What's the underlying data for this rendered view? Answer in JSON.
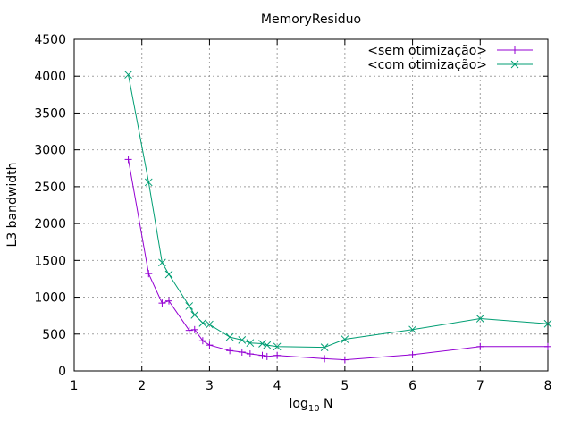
{
  "chart_data": {
    "type": "line",
    "title": "MemoryResiduo",
    "xlabel_main": "log",
    "xlabel_sub": "10",
    "xlabel_tail": " N",
    "ylabel": "L3 bandwidth",
    "xlim": [
      1,
      8
    ],
    "ylim": [
      0,
      4500
    ],
    "xticks": [
      1,
      2,
      3,
      4,
      5,
      6,
      7,
      8
    ],
    "yticks": [
      0,
      500,
      1000,
      1500,
      2000,
      2500,
      3000,
      3500,
      4000,
      4500
    ],
    "grid": true,
    "legend_position": "top-right",
    "series": [
      {
        "name": "<sem otimização>",
        "color": "#9400d3",
        "marker": "plus",
        "x": [
          1.8,
          2.1,
          2.3,
          2.4,
          2.7,
          2.78,
          2.9,
          3.0,
          3.3,
          3.48,
          3.6,
          3.78,
          3.85,
          4.0,
          4.7,
          5.0,
          6.0,
          7.0,
          8.0
        ],
        "y": [
          2870,
          1320,
          920,
          950,
          550,
          560,
          410,
          350,
          275,
          255,
          230,
          210,
          195,
          210,
          165,
          150,
          220,
          330,
          330
        ]
      },
      {
        "name": "<com otimização>",
        "color": "#009e73",
        "marker": "cross",
        "x": [
          1.8,
          2.1,
          2.3,
          2.4,
          2.7,
          2.78,
          2.9,
          3.0,
          3.3,
          3.48,
          3.6,
          3.78,
          3.85,
          4.0,
          4.7,
          5.0,
          6.0,
          7.0,
          8.0
        ],
        "y": [
          4020,
          2560,
          1470,
          1310,
          880,
          760,
          650,
          630,
          460,
          420,
          380,
          370,
          350,
          330,
          320,
          430,
          560,
          710,
          640
        ]
      }
    ]
  }
}
